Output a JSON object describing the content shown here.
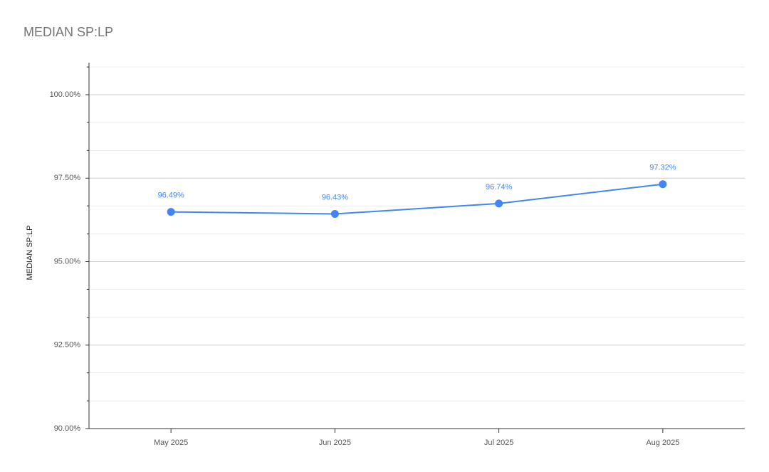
{
  "chart_data": {
    "type": "line",
    "title": "MEDIAN SP:LP",
    "y_label": "MEDIAN SP:LP",
    "categories": [
      "May 2025",
      "Jun 2025",
      "Jul 2025",
      "Aug 2025"
    ],
    "series": [
      {
        "name": "MEDIAN SP:LP",
        "color": "#4285f4",
        "values": [
          96.49,
          96.43,
          96.74,
          97.32
        ],
        "value_labels": [
          "96.49%",
          "96.43%",
          "96.74%",
          "97.32%"
        ]
      }
    ],
    "ylim": [
      90,
      100.96
    ],
    "yticks": [
      {
        "value": 90,
        "label": "90.00%"
      },
      {
        "value": 92.5,
        "label": "92.50%"
      },
      {
        "value": 95,
        "label": "95.00%"
      },
      {
        "value": 97.5,
        "label": "97.50%"
      },
      {
        "value": 100,
        "label": "100.00%"
      }
    ],
    "y_minor_ticks": [
      90.83,
      91.67,
      93.33,
      94.17,
      95.83,
      96.67,
      98.33,
      99.17,
      100.83
    ],
    "grid": true
  }
}
